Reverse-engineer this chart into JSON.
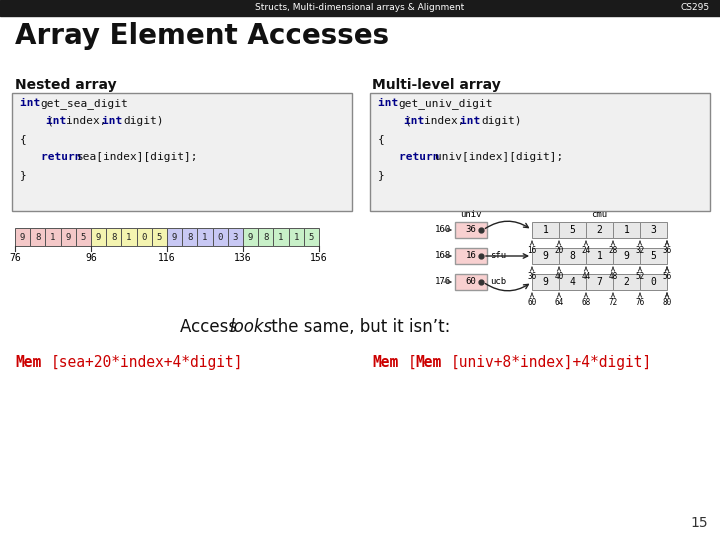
{
  "title": "Array Element Accesses",
  "header": "Structs, Multi-dimensional arrays & Alignment",
  "header_right": "CS295",
  "page_number": "15",
  "bg_color": "#ffffff",
  "header_bg": "#1a1a1a",
  "nested_label": "Nested array",
  "multilevel_label": "Multi-level array",
  "nested_cells": [
    "9",
    "8",
    "1",
    "9",
    "5",
    "9",
    "8",
    "1",
    "0",
    "5",
    "9",
    "8",
    "1",
    "0",
    "3",
    "9",
    "8",
    "1",
    "1",
    "5"
  ],
  "nested_colors": [
    "#f4c8c8",
    "#f4c8c8",
    "#f4c8c8",
    "#f4c8c8",
    "#f4c8c8",
    "#f4f4b0",
    "#f4f4b0",
    "#f4f4b0",
    "#f4f4b0",
    "#f4f4b0",
    "#c8c8f4",
    "#c8c8f4",
    "#c8c8f4",
    "#c8c8f4",
    "#c8c8f4",
    "#c8f0c8",
    "#c8f0c8",
    "#c8f0c8",
    "#c8f0c8",
    "#c8f0c8"
  ],
  "nested_ticks": [
    "76",
    "96",
    "116",
    "136",
    "156"
  ],
  "univ_values": [
    "36",
    "16",
    "60"
  ],
  "univ_addresses": [
    "160",
    "168",
    "176"
  ],
  "univ_side_labels": [
    "sfu",
    "ucb"
  ],
  "cmu_row": [
    "1",
    "5",
    "2",
    "1",
    "3"
  ],
  "cmu_ticks": [
    "16",
    "20",
    "24",
    "28",
    "32",
    "36"
  ],
  "sfu_row": [
    "9",
    "8",
    "1",
    "9",
    "5"
  ],
  "sfu_ticks": [
    "36",
    "40",
    "44",
    "48",
    "52",
    "56"
  ],
  "ucb_row": [
    "9",
    "4",
    "7",
    "2",
    "0"
  ],
  "ucb_ticks": [
    "60",
    "64",
    "68",
    "72",
    "76",
    "80"
  ]
}
